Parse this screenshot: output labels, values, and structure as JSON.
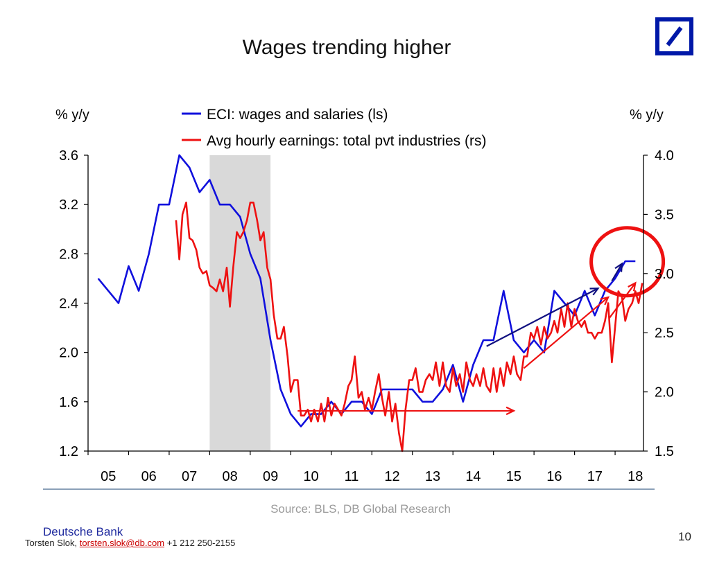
{
  "slide": {
    "title": "Wages trending higher",
    "source": "Source: BLS, DB Global Research",
    "company": "Deutsche Bank",
    "contact_name": "Torsten Slok, ",
    "contact_email": "torsten.slok@db.com",
    "contact_phone": " +1 212 250-2155",
    "page_number": "10",
    "logo_color": "#0018a8"
  },
  "chart_data": {
    "type": "line",
    "left_axis_label": "% y/y",
    "right_axis_label": "% y/y",
    "left_ylim": [
      1.2,
      3.6
    ],
    "left_ticks": [
      "3.6",
      "3.2",
      "2.8",
      "2.4",
      "2.0",
      "1.6",
      "1.2"
    ],
    "right_ylim": [
      1.5,
      4.0
    ],
    "right_ticks": [
      "4.0",
      "3.5",
      "3.0",
      "2.5",
      "2.0",
      "1.5"
    ],
    "x_ticks": [
      "05",
      "06",
      "07",
      "08",
      "09",
      "10",
      "11",
      "12",
      "13",
      "14",
      "15",
      "16",
      "17",
      "18"
    ],
    "grid": false,
    "legend_position": "top",
    "recession_shading": {
      "from": 2008.0,
      "to": 2009.5,
      "color": "#d9d9d9"
    },
    "series": [
      {
        "name": "ECI: wages and salaries (ls)",
        "axis": "left",
        "color": "#1010dd",
        "points": [
          [
            2005.25,
            2.6
          ],
          [
            2005.5,
            2.5
          ],
          [
            2005.75,
            2.4
          ],
          [
            2006.0,
            2.7
          ],
          [
            2006.25,
            2.5
          ],
          [
            2006.5,
            2.8
          ],
          [
            2006.75,
            3.2
          ],
          [
            2007.0,
            3.2
          ],
          [
            2007.25,
            3.6
          ],
          [
            2007.5,
            3.5
          ],
          [
            2007.75,
            3.3
          ],
          [
            2008.0,
            3.4
          ],
          [
            2008.25,
            3.2
          ],
          [
            2008.5,
            3.2
          ],
          [
            2008.75,
            3.1
          ],
          [
            2009.0,
            2.8
          ],
          [
            2009.25,
            2.6
          ],
          [
            2009.5,
            2.1
          ],
          [
            2009.75,
            1.7
          ],
          [
            2010.0,
            1.5
          ],
          [
            2010.25,
            1.4
          ],
          [
            2010.5,
            1.5
          ],
          [
            2010.75,
            1.5
          ],
          [
            2011.0,
            1.6
          ],
          [
            2011.25,
            1.5
          ],
          [
            2011.5,
            1.6
          ],
          [
            2011.75,
            1.6
          ],
          [
            2012.0,
            1.5
          ],
          [
            2012.25,
            1.7
          ],
          [
            2012.5,
            1.7
          ],
          [
            2012.75,
            1.7
          ],
          [
            2013.0,
            1.7
          ],
          [
            2013.25,
            1.6
          ],
          [
            2013.5,
            1.6
          ],
          [
            2013.75,
            1.7
          ],
          [
            2014.0,
            1.9
          ],
          [
            2014.25,
            1.6
          ],
          [
            2014.5,
            1.9
          ],
          [
            2014.75,
            2.1
          ],
          [
            2015.0,
            2.1
          ],
          [
            2015.25,
            2.5
          ],
          [
            2015.5,
            2.1
          ],
          [
            2015.75,
            2.0
          ],
          [
            2016.0,
            2.1
          ],
          [
            2016.25,
            2.0
          ],
          [
            2016.5,
            2.5
          ],
          [
            2016.75,
            2.4
          ],
          [
            2017.0,
            2.3
          ],
          [
            2017.25,
            2.5
          ],
          [
            2017.5,
            2.3
          ],
          [
            2017.75,
            2.5
          ],
          [
            2018.0,
            2.6
          ],
          [
            2018.25,
            2.74
          ],
          [
            2018.5,
            2.74
          ]
        ]
      },
      {
        "name": "Avg hourly earnings: total pvt industries (rs)",
        "axis": "right",
        "color": "#ee1111",
        "points": [
          [
            2007.17,
            3.45
          ],
          [
            2007.25,
            3.12
          ],
          [
            2007.33,
            3.5
          ],
          [
            2007.42,
            3.6
          ],
          [
            2007.5,
            3.3
          ],
          [
            2007.58,
            3.28
          ],
          [
            2007.67,
            3.2
          ],
          [
            2007.75,
            3.05
          ],
          [
            2007.83,
            3.0
          ],
          [
            2007.92,
            3.02
          ],
          [
            2008.0,
            2.9
          ],
          [
            2008.08,
            2.88
          ],
          [
            2008.17,
            2.85
          ],
          [
            2008.25,
            2.95
          ],
          [
            2008.33,
            2.85
          ],
          [
            2008.42,
            3.05
          ],
          [
            2008.5,
            2.72
          ],
          [
            2008.58,
            3.05
          ],
          [
            2008.67,
            3.35
          ],
          [
            2008.75,
            3.3
          ],
          [
            2008.83,
            3.35
          ],
          [
            2008.92,
            3.45
          ],
          [
            2009.0,
            3.6
          ],
          [
            2009.08,
            3.6
          ],
          [
            2009.17,
            3.45
          ],
          [
            2009.25,
            3.28
          ],
          [
            2009.33,
            3.35
          ],
          [
            2009.42,
            3.05
          ],
          [
            2009.5,
            2.95
          ],
          [
            2009.58,
            2.65
          ],
          [
            2009.67,
            2.45
          ],
          [
            2009.75,
            2.45
          ],
          [
            2009.83,
            2.55
          ],
          [
            2009.92,
            2.3
          ],
          [
            2010.0,
            2.0
          ],
          [
            2010.08,
            2.1
          ],
          [
            2010.17,
            2.1
          ],
          [
            2010.25,
            1.8
          ],
          [
            2010.33,
            1.8
          ],
          [
            2010.42,
            1.85
          ],
          [
            2010.5,
            1.75
          ],
          [
            2010.58,
            1.85
          ],
          [
            2010.67,
            1.75
          ],
          [
            2010.75,
            1.9
          ],
          [
            2010.83,
            1.75
          ],
          [
            2010.92,
            1.95
          ],
          [
            2011.0,
            1.8
          ],
          [
            2011.08,
            1.9
          ],
          [
            2011.17,
            1.85
          ],
          [
            2011.25,
            1.8
          ],
          [
            2011.33,
            1.9
          ],
          [
            2011.42,
            2.05
          ],
          [
            2011.5,
            2.1
          ],
          [
            2011.58,
            2.3
          ],
          [
            2011.67,
            1.95
          ],
          [
            2011.75,
            2.0
          ],
          [
            2011.83,
            1.85
          ],
          [
            2011.92,
            1.95
          ],
          [
            2012.0,
            1.85
          ],
          [
            2012.08,
            2.0
          ],
          [
            2012.17,
            2.15
          ],
          [
            2012.25,
            1.95
          ],
          [
            2012.33,
            1.8
          ],
          [
            2012.42,
            2.0
          ],
          [
            2012.5,
            1.75
          ],
          [
            2012.58,
            1.9
          ],
          [
            2012.67,
            1.65
          ],
          [
            2012.75,
            1.5
          ],
          [
            2012.83,
            1.85
          ],
          [
            2012.92,
            2.1
          ],
          [
            2013.0,
            2.1
          ],
          [
            2013.08,
            2.2
          ],
          [
            2013.17,
            2.0
          ],
          [
            2013.25,
            2.0
          ],
          [
            2013.33,
            2.1
          ],
          [
            2013.42,
            2.15
          ],
          [
            2013.5,
            2.1
          ],
          [
            2013.58,
            2.25
          ],
          [
            2013.67,
            2.05
          ],
          [
            2013.75,
            2.25
          ],
          [
            2013.83,
            2.05
          ],
          [
            2013.92,
            2.0
          ],
          [
            2014.0,
            2.2
          ],
          [
            2014.08,
            2.05
          ],
          [
            2014.17,
            2.15
          ],
          [
            2014.25,
            2.0
          ],
          [
            2014.33,
            2.25
          ],
          [
            2014.42,
            2.1
          ],
          [
            2014.5,
            2.05
          ],
          [
            2014.58,
            2.15
          ],
          [
            2014.67,
            2.05
          ],
          [
            2014.75,
            2.2
          ],
          [
            2014.83,
            2.05
          ],
          [
            2014.92,
            2.0
          ],
          [
            2015.0,
            2.2
          ],
          [
            2015.08,
            2.0
          ],
          [
            2015.17,
            2.2
          ],
          [
            2015.25,
            2.05
          ],
          [
            2015.33,
            2.25
          ],
          [
            2015.42,
            2.15
          ],
          [
            2015.5,
            2.3
          ],
          [
            2015.58,
            2.15
          ],
          [
            2015.67,
            2.1
          ],
          [
            2015.75,
            2.3
          ],
          [
            2015.83,
            2.3
          ],
          [
            2015.92,
            2.5
          ],
          [
            2016.0,
            2.45
          ],
          [
            2016.08,
            2.55
          ],
          [
            2016.17,
            2.4
          ],
          [
            2016.25,
            2.55
          ],
          [
            2016.33,
            2.45
          ],
          [
            2016.42,
            2.5
          ],
          [
            2016.5,
            2.6
          ],
          [
            2016.58,
            2.5
          ],
          [
            2016.67,
            2.7
          ],
          [
            2016.75,
            2.55
          ],
          [
            2016.83,
            2.75
          ],
          [
            2016.92,
            2.55
          ],
          [
            2017.0,
            2.7
          ],
          [
            2017.08,
            2.6
          ],
          [
            2017.17,
            2.55
          ],
          [
            2017.25,
            2.6
          ],
          [
            2017.33,
            2.5
          ],
          [
            2017.42,
            2.5
          ],
          [
            2017.5,
            2.45
          ],
          [
            2017.58,
            2.5
          ],
          [
            2017.67,
            2.5
          ],
          [
            2017.75,
            2.6
          ],
          [
            2017.83,
            2.75
          ],
          [
            2017.92,
            2.25
          ],
          [
            2018.0,
            2.55
          ],
          [
            2018.08,
            2.85
          ],
          [
            2018.17,
            2.8
          ],
          [
            2018.25,
            2.6
          ],
          [
            2018.33,
            2.7
          ],
          [
            2018.42,
            2.75
          ],
          [
            2018.5,
            2.85
          ],
          [
            2018.58,
            2.75
          ],
          [
            2018.67,
            2.92
          ]
        ]
      }
    ],
    "annotations": [
      {
        "kind": "arrow",
        "color": "#ee1111",
        "axis": "right",
        "from": [
          2010.17,
          1.84
        ],
        "to": [
          2015.5,
          1.84
        ]
      },
      {
        "kind": "arrow",
        "color": "#ee1111",
        "axis": "right",
        "from": [
          2015.75,
          2.2
        ],
        "to": [
          2017.83,
          2.8
        ]
      },
      {
        "kind": "arrow",
        "color": "#ee1111",
        "axis": "right",
        "from": [
          2017.85,
          2.62
        ],
        "to": [
          2018.5,
          2.92
        ]
      },
      {
        "kind": "arrow",
        "color": "#101080",
        "axis": "left",
        "from": [
          2014.83,
          2.05
        ],
        "to": [
          2017.58,
          2.52
        ]
      },
      {
        "kind": "arrow",
        "color": "#101080",
        "axis": "left",
        "from": [
          2017.92,
          2.58
        ],
        "to": [
          2018.17,
          2.72
        ]
      },
      {
        "kind": "circle",
        "color": "#ee1111",
        "axis": "right",
        "center": [
          2018.3,
          3.1
        ]
      }
    ]
  }
}
